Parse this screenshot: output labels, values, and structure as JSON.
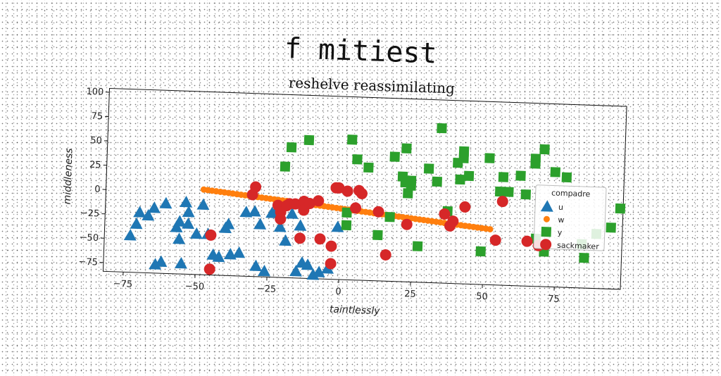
{
  "page": {
    "title": "f mitiest"
  },
  "chart_data": {
    "type": "scatter",
    "title": "reshelve reassimilating",
    "xlabel": "taintlessly",
    "ylabel": "middleness",
    "xlim": [
      -82,
      98
    ],
    "ylim": [
      -84,
      104
    ],
    "xticks": [
      -75,
      -50,
      -25,
      0,
      25,
      50,
      75
    ],
    "yticks": [
      -75,
      -50,
      -25,
      0,
      25,
      50,
      75,
      100
    ],
    "grid": false,
    "legend": {
      "title": "compadre",
      "placement": "right"
    },
    "series": [
      {
        "name": "u",
        "marker": "triangle",
        "color": "#1f77b4",
        "points": [
          [
            -73,
            -46
          ],
          [
            -71,
            -34
          ],
          [
            -70,
            -22
          ],
          [
            -67,
            -25
          ],
          [
            -65,
            -17
          ],
          [
            -64,
            -75
          ],
          [
            -62,
            -72
          ],
          [
            -61,
            -12
          ],
          [
            -57,
            -36
          ],
          [
            -56,
            -30
          ],
          [
            -56,
            -48
          ],
          [
            -55,
            -73
          ],
          [
            -54,
            -10
          ],
          [
            -53,
            -32
          ],
          [
            -53,
            -20
          ],
          [
            -50,
            -42
          ],
          [
            -48,
            -12
          ],
          [
            -46,
            -42
          ],
          [
            -44,
            -63
          ],
          [
            -42,
            -65
          ],
          [
            -40,
            -35
          ],
          [
            -39,
            -31
          ],
          [
            -38,
            -62
          ],
          [
            -35,
            -60
          ],
          [
            -33,
            -18
          ],
          [
            -30,
            -17
          ],
          [
            -29,
            -73
          ],
          [
            -28,
            -30
          ],
          [
            -26,
            -78
          ],
          [
            -24,
            -18
          ],
          [
            -23,
            -18
          ],
          [
            -21,
            -32
          ],
          [
            -19,
            -46
          ],
          [
            -17,
            -18
          ],
          [
            -15,
            -77
          ],
          [
            -14,
            -30
          ],
          [
            -13,
            -68
          ],
          [
            -11,
            -70
          ],
          [
            -9,
            -80
          ],
          [
            -7,
            -77
          ],
          [
            -4,
            -73
          ],
          [
            -1,
            -30
          ]
        ]
      },
      {
        "name": "w",
        "marker": "circle-small",
        "color": "#ff7f0e",
        "line": {
          "x0": -48,
          "x1": 52,
          "y0": 3.5,
          "y1": -27,
          "n": 70
        }
      },
      {
        "name": "y",
        "marker": "square",
        "color": "#2ca02c",
        "points": [
          [
            -20,
            30
          ],
          [
            -18,
            50
          ],
          [
            -12,
            58
          ],
          [
            2,
            -15
          ],
          [
            2,
            -28
          ],
          [
            3,
            60
          ],
          [
            5,
            40
          ],
          [
            9,
            32
          ],
          [
            13,
            -37
          ],
          [
            17,
            -18
          ],
          [
            18,
            44
          ],
          [
            21,
            24
          ],
          [
            22,
            18
          ],
          [
            22,
            53
          ],
          [
            23,
            7
          ],
          [
            24,
            20
          ],
          [
            24,
            15
          ],
          [
            27,
            -47
          ],
          [
            30,
            33
          ],
          [
            33,
            20
          ],
          [
            34,
            75
          ],
          [
            37,
            -10
          ],
          [
            40,
            40
          ],
          [
            41,
            23
          ],
          [
            42,
            52
          ],
          [
            42,
            45
          ],
          [
            44,
            27
          ],
          [
            49,
            -50
          ],
          [
            51,
            46
          ],
          [
            55,
            12
          ],
          [
            56,
            27
          ],
          [
            58,
            12
          ],
          [
            62,
            29
          ],
          [
            64,
            10
          ],
          [
            67,
            47
          ],
          [
            67,
            42
          ],
          [
            68,
            -35
          ],
          [
            70,
            57
          ],
          [
            71,
            -48
          ],
          [
            74,
            34
          ],
          [
            78,
            29
          ],
          [
            84,
            -39
          ],
          [
            85,
            -53
          ],
          [
            89,
            -28
          ],
          [
            94,
            -21
          ],
          [
            97,
            -1
          ]
        ]
      },
      {
        "name": "sackmaker",
        "marker": "circle",
        "color": "#d62728",
        "points": [
          [
            -45,
            -43
          ],
          [
            -45,
            -78
          ],
          [
            -31,
            0
          ],
          [
            -30,
            8
          ],
          [
            -22,
            -10
          ],
          [
            -21,
            -17
          ],
          [
            -21,
            -24
          ],
          [
            -19,
            -10
          ],
          [
            -18,
            -8
          ],
          [
            -16,
            -8
          ],
          [
            -14,
            -43
          ],
          [
            -13,
            -5
          ],
          [
            -13,
            -14
          ],
          [
            -11,
            -7
          ],
          [
            -8,
            -4
          ],
          [
            -7,
            -43
          ],
          [
            -3,
            -50
          ],
          [
            -3,
            -68
          ],
          [
            -2,
            10
          ],
          [
            -1,
            10
          ],
          [
            2,
            7
          ],
          [
            5,
            -10
          ],
          [
            6,
            8
          ],
          [
            7,
            5
          ],
          [
            13,
            -13
          ],
          [
            16,
            -57
          ],
          [
            23,
            -25
          ],
          [
            36,
            -13
          ],
          [
            38,
            -25
          ],
          [
            39,
            -20
          ],
          [
            43,
            -5
          ],
          [
            54,
            -38
          ],
          [
            56,
            2
          ],
          [
            65,
            -38
          ],
          [
            69,
            -42
          ]
        ]
      }
    ]
  }
}
